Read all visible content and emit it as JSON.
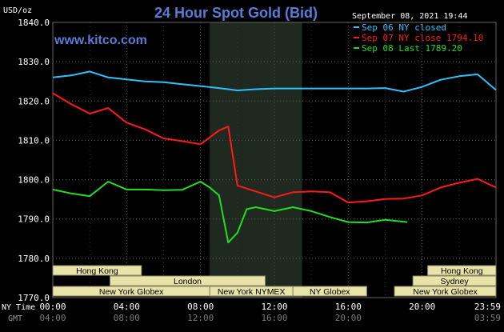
{
  "chart_data": {
    "type": "line",
    "title": "24 Hour Spot Gold (Bid)",
    "site": "www.kitco.com",
    "ylabel": "USD/oz",
    "ylim": [
      1770,
      1840
    ],
    "yticks": [
      "1840.0",
      "1830.0",
      "1820.0",
      "1810.0",
      "1800.0",
      "1790.0",
      "1780.0",
      "1770.0"
    ],
    "timestamp": "September 08, 2021 19:44",
    "x_axis_labels": {
      "row1_label": "NY Time",
      "row2_label": "GMT",
      "ny_time": [
        "00:00",
        "04:00",
        "08:00",
        "12:00",
        "16:00",
        "20:00",
        "23:59"
      ],
      "gmt": [
        "04:00",
        "08:00",
        "12:00",
        "16:00",
        "20:00",
        "",
        "03:59"
      ]
    },
    "grid": true,
    "legend_position": "top-right",
    "series": [
      {
        "name": "Sep 06 NY closed",
        "color": "#2ec0f9",
        "x": [
          0,
          1,
          2,
          3,
          4,
          5,
          6,
          7,
          8,
          9,
          10,
          11,
          12,
          13,
          14,
          15,
          16,
          17,
          18,
          19,
          20,
          21,
          22,
          23,
          24
        ],
        "y": [
          1826,
          1826.5,
          1827.5,
          1826,
          1825.5,
          1825,
          1824.8,
          1824.3,
          1823.8,
          1823.3,
          1822.7,
          1823,
          1823.2,
          1823.2,
          1823.2,
          1823.2,
          1823.2,
          1823.2,
          1823.3,
          1822.4,
          1823.6,
          1825.4,
          1826.3,
          1826.8,
          1822.8
        ]
      },
      {
        "name": "Sep 07 NY close 1794.10",
        "color": "#ff1a1a",
        "x": [
          0,
          1,
          2,
          3,
          4,
          5,
          6,
          7,
          8,
          9,
          9.5,
          10,
          11,
          12,
          13,
          14,
          15,
          16,
          17,
          18,
          19,
          20,
          21,
          22,
          23,
          24
        ],
        "y": [
          1822,
          1819.2,
          1816.8,
          1818.2,
          1814.5,
          1812.8,
          1810.5,
          1809.8,
          1809,
          1812.5,
          1813.5,
          1798.5,
          1797,
          1795.5,
          1796.8,
          1797,
          1796.8,
          1794.2,
          1794.5,
          1795.1,
          1795.2,
          1796,
          1798,
          1799.2,
          1800.2,
          1798
        ]
      },
      {
        "name": "Sep 08 Last 1789.20",
        "color": "#22dd22",
        "x": [
          0,
          1,
          2,
          3,
          4,
          5,
          6,
          7,
          8,
          8.5,
          9,
          9.5,
          10,
          10.5,
          11,
          12,
          13,
          14,
          15,
          16,
          17,
          18,
          19.2
        ],
        "y": [
          1797.5,
          1796.5,
          1795.8,
          1799.5,
          1797.5,
          1797.5,
          1797.3,
          1797.4,
          1799.5,
          1798,
          1796,
          1784,
          1786.5,
          1792.5,
          1793,
          1792,
          1793,
          1792,
          1790.5,
          1789.2,
          1789.1,
          1789.8,
          1789.2
        ]
      }
    ],
    "shaded_region": {
      "x_start": 8.5,
      "x_end": 13.5,
      "color": "#1f291f"
    },
    "sessions": [
      {
        "label": "Hong Kong",
        "start": 0,
        "end": 4.8
      },
      {
        "label": "London",
        "start": 3.1,
        "end": 11.5
      },
      {
        "label": "New York Globex",
        "start": 0,
        "end": 8.5
      },
      {
        "label": "New York NYMEX",
        "start": 8.5,
        "end": 13.0
      },
      {
        "label": "NY Globex",
        "start": 13.0,
        "end": 17.0
      },
      {
        "label": "Hong Kong",
        "start": 20.3,
        "end": 24
      },
      {
        "label": "Sydney",
        "start": 19.5,
        "end": 24
      },
      {
        "label": "New York Globex",
        "start": 18.5,
        "end": 24
      }
    ]
  }
}
